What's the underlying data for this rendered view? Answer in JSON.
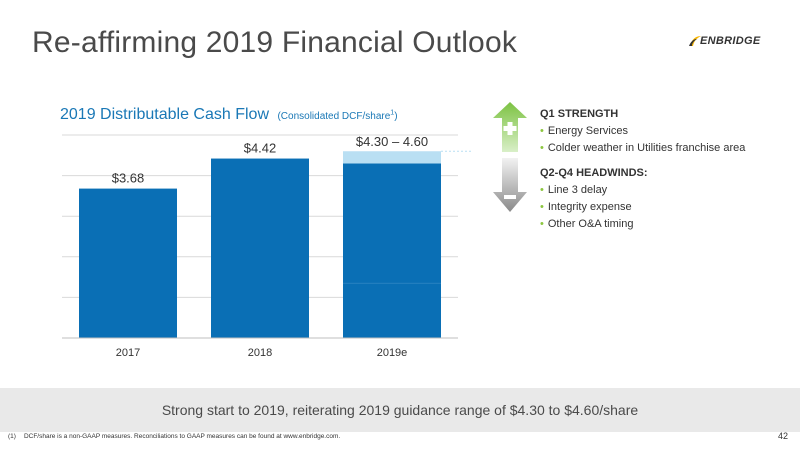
{
  "slide": {
    "title": "Re-affirming 2019 Financial Outlook",
    "logo_text": "ENBRIDGE",
    "page_number": "42"
  },
  "chart_header": {
    "title": "2019 Distributable Cash Flow",
    "subtitle": "(Consolidated DCF/share",
    "subtitle_sup": "1",
    "subtitle_close": ")"
  },
  "chart_data": {
    "type": "bar",
    "categories": [
      "2017",
      "2018",
      "2019e"
    ],
    "values": [
      3.68,
      4.42,
      4.3
    ],
    "range_2019e": [
      4.3,
      4.6
    ],
    "data_labels": [
      "$3.68",
      "$4.42",
      "$4.30 – 4.60"
    ],
    "title": "2019 Distributable Cash Flow",
    "grid": true,
    "colors": {
      "bar": "#0a6fb5",
      "range": "#b9dff3"
    }
  },
  "right_panel": {
    "q1_heading": "Q1 STRENGTH",
    "q1_items": [
      "Energy Services",
      "Colder weather in Utilities franchise area"
    ],
    "q2_heading": "Q2-Q4 HEADWINDS:",
    "q2_items": [
      "Line 3 delay",
      "Integrity expense",
      "Other O&A timing"
    ],
    "up_arrow_icon": "plus-up-arrow-icon",
    "down_arrow_icon": "minus-down-arrow-icon"
  },
  "footer": {
    "banner": "Strong start to 2019, reiterating 2019 guidance range of $4.30 to $4.60/share",
    "footnote_num": "(1)",
    "footnote_text": "DCF/share is a non-GAAP measures. Reconciliations to GAAP measures can be found at www.enbridge.com."
  },
  "colors": {
    "accent": "#1a78b6",
    "bullet": "#8cc63f",
    "band": "#e9e9e9"
  }
}
